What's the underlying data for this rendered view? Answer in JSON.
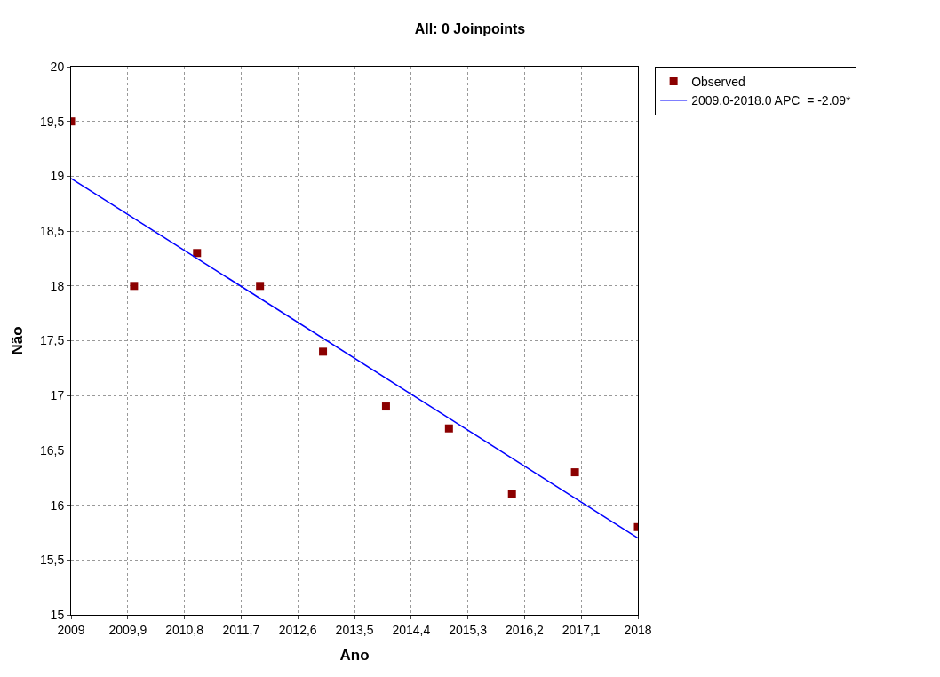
{
  "chart_data": {
    "type": "scatter",
    "title": "All: 0 Joinpoints",
    "xlabel": "Ano",
    "ylabel": "Não",
    "x": [
      2009,
      2010,
      2011,
      2012,
      2013,
      2014,
      2015,
      2016,
      2017,
      2018
    ],
    "series": [
      {
        "name": "Observed",
        "color": "#8b0000",
        "marker": "square",
        "values": [
          19.5,
          18.0,
          18.3,
          18.0,
          17.4,
          16.9,
          16.7,
          16.1,
          16.3,
          15.8
        ]
      },
      {
        "name": "2009.0-2018.0 APC  = -2.09*",
        "color": "#0000ff",
        "type": "line",
        "marker": "none",
        "line_style": "solid",
        "x": [
          2009,
          2018
        ],
        "values": [
          18.98,
          15.7
        ]
      }
    ],
    "xlim": [
      2009,
      2018
    ],
    "xticks": [
      2009,
      {
        "value": 2009.9,
        "label": "2009,9"
      },
      {
        "value": 2010.8,
        "label": "2010,8"
      },
      {
        "value": 2011.7,
        "label": "2011,7"
      },
      {
        "value": 2012.6,
        "label": "2012,6"
      },
      {
        "value": 2013.5,
        "label": "2013,5"
      },
      {
        "value": 2014.4,
        "label": "2014,4"
      },
      {
        "value": 2015.3,
        "label": "2015,3"
      },
      {
        "value": 2016.2,
        "label": "2016,2"
      },
      {
        "value": 2017.1,
        "label": "2017,1"
      },
      2018
    ],
    "ylim": [
      15,
      20
    ],
    "yticks": [
      15,
      {
        "value": 15.5,
        "label": "15,5"
      },
      16,
      {
        "value": 16.5,
        "label": "16,5"
      },
      17,
      {
        "value": 17.5,
        "label": "17,5"
      },
      18,
      {
        "value": 18.5,
        "label": "18,5"
      },
      19,
      {
        "value": 19.5,
        "label": "19,5"
      },
      20
    ],
    "grid": true,
    "legend": "top right"
  }
}
